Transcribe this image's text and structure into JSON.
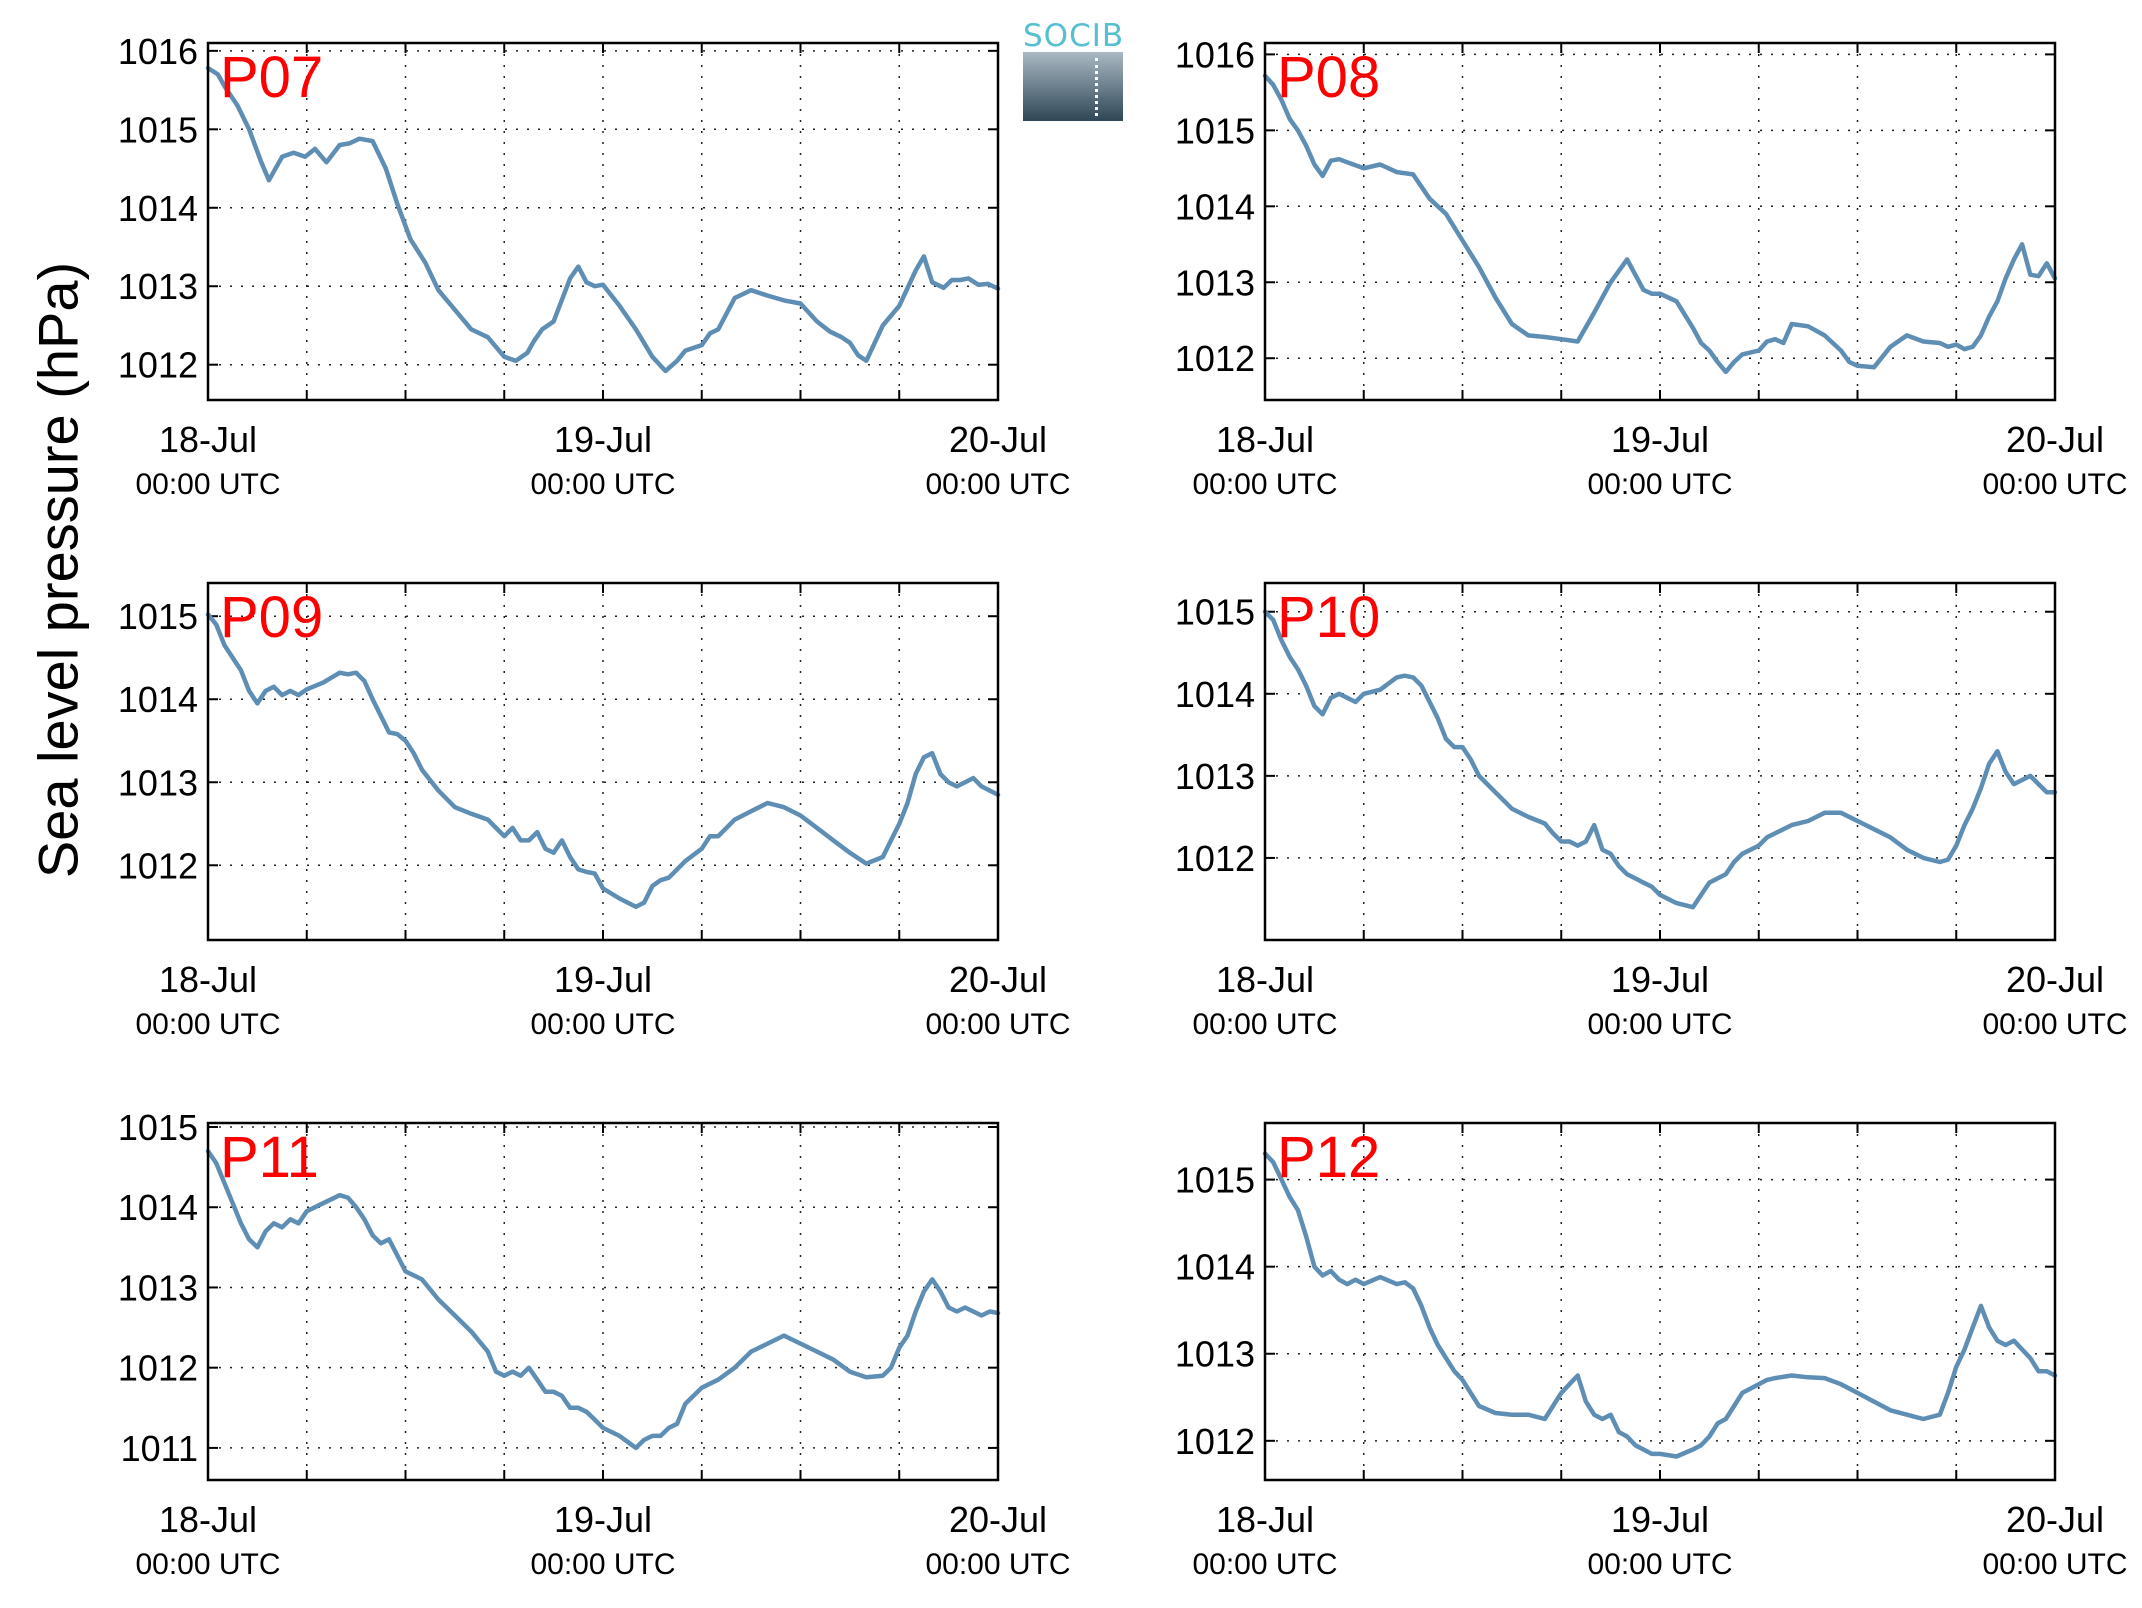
{
  "y_axis_label": "Sea level pressure (hPa)",
  "logo": {
    "text": "SOCIB"
  },
  "chart_data": [
    {
      "type": "line",
      "name": "P07",
      "x_ticks": [
        "18-Jul",
        "19-Jul",
        "20-Jul"
      ],
      "x_tick_sublabel": "00:00 UTC",
      "xlim_hours": [
        0,
        48
      ],
      "ylim": [
        1011.55,
        1016.1
      ],
      "yticks": [
        1012,
        1013,
        1014,
        1015,
        1016
      ],
      "series": [
        {
          "color": "#5f8eb5",
          "x": [
            0,
            0.6,
            1,
            1.8,
            2.5,
            3.2,
            3.7,
            4.5,
            5.2,
            5.9,
            6.5,
            7.2,
            8,
            8.6,
            9.2,
            10,
            10.8,
            11.5,
            12.3,
            13.2,
            14,
            15,
            16,
            17,
            18,
            18.7,
            19.4,
            19.8,
            20.3,
            21,
            22,
            22.5,
            23,
            23.5,
            24,
            25,
            26,
            27,
            27.8,
            28.5,
            29,
            30,
            30.5,
            31,
            32,
            33,
            34,
            35,
            36,
            37,
            37.8,
            38.5,
            39,
            39.5,
            40,
            41,
            42,
            43,
            43.5,
            44,
            44.7,
            45.2,
            45.7,
            46.2,
            46.8,
            47.4,
            48
          ],
          "y": [
            1015.78,
            1015.7,
            1015.55,
            1015.3,
            1015,
            1014.6,
            1014.35,
            1014.65,
            1014.7,
            1014.65,
            1014.75,
            1014.58,
            1014.8,
            1014.82,
            1014.88,
            1014.85,
            1014.5,
            1014.05,
            1013.6,
            1013.3,
            1012.95,
            1012.7,
            1012.45,
            1012.35,
            1012.1,
            1012.05,
            1012.15,
            1012.3,
            1012.45,
            1012.55,
            1013.1,
            1013.25,
            1013.05,
            1013,
            1013.02,
            1012.75,
            1012.45,
            1012.1,
            1011.92,
            1012.05,
            1012.18,
            1012.25,
            1012.4,
            1012.45,
            1012.85,
            1012.95,
            1012.88,
            1012.82,
            1012.78,
            1012.55,
            1012.42,
            1012.35,
            1012.28,
            1012.12,
            1012.05,
            1012.5,
            1012.75,
            1013.2,
            1013.38,
            1013.05,
            1012.98,
            1013.08,
            1013.08,
            1013.1,
            1013.02,
            1013.03,
            1012.97
          ]
        }
      ]
    },
    {
      "type": "line",
      "name": "P08",
      "x_ticks": [
        "18-Jul",
        "19-Jul",
        "20-Jul"
      ],
      "x_tick_sublabel": "00:00 UTC",
      "xlim_hours": [
        0,
        48
      ],
      "ylim": [
        1011.45,
        1016.15
      ],
      "yticks": [
        1012,
        1013,
        1014,
        1015,
        1016
      ],
      "series": [
        {
          "color": "#5f8eb5",
          "x": [
            0,
            0.5,
            1,
            1.5,
            2,
            2.5,
            3,
            3.5,
            4,
            4.5,
            5,
            6,
            7,
            8,
            9,
            10,
            11,
            12,
            13,
            14,
            15,
            16,
            17,
            18,
            19,
            20,
            21,
            22,
            22.5,
            23,
            23.5,
            24,
            25,
            26,
            26.5,
            27,
            27.5,
            28,
            28.5,
            29,
            30,
            30.5,
            31,
            31.5,
            32,
            33,
            34,
            35,
            35.5,
            36,
            37,
            38,
            39,
            40,
            41,
            41.5,
            42,
            42.5,
            43,
            43.5,
            44,
            44.5,
            45,
            45.5,
            46,
            46.5,
            47,
            47.5,
            48
          ],
          "y": [
            1015.72,
            1015.6,
            1015.4,
            1015.15,
            1015,
            1014.8,
            1014.55,
            1014.4,
            1014.6,
            1014.62,
            1014.58,
            1014.5,
            1014.55,
            1014.45,
            1014.42,
            1014.1,
            1013.9,
            1013.55,
            1013.2,
            1012.8,
            1012.45,
            1012.3,
            1012.28,
            1012.25,
            1012.22,
            1012.6,
            1013,
            1013.3,
            1013.1,
            1012.9,
            1012.85,
            1012.85,
            1012.75,
            1012.4,
            1012.2,
            1012.1,
            1011.95,
            1011.82,
            1011.95,
            1012.05,
            1012.1,
            1012.22,
            1012.25,
            1012.2,
            1012.45,
            1012.42,
            1012.3,
            1012.1,
            1011.95,
            1011.9,
            1011.88,
            1012.15,
            1012.3,
            1012.22,
            1012.2,
            1012.15,
            1012.18,
            1012.12,
            1012.15,
            1012.3,
            1012.55,
            1012.75,
            1013.05,
            1013.3,
            1013.5,
            1013.1,
            1013.08,
            1013.25,
            1013.05
          ]
        }
      ]
    },
    {
      "type": "line",
      "name": "P09",
      "x_ticks": [
        "18-Jul",
        "19-Jul",
        "20-Jul"
      ],
      "x_tick_sublabel": "00:00 UTC",
      "xlim_hours": [
        0,
        48
      ],
      "ylim": [
        1011.1,
        1015.4
      ],
      "yticks": [
        1012,
        1013,
        1014,
        1015
      ],
      "series": [
        {
          "color": "#5f8eb5",
          "x": [
            0,
            0.5,
            1,
            1.5,
            2,
            2.5,
            3,
            3.5,
            4,
            4.5,
            5,
            5.5,
            6,
            7,
            8,
            8.5,
            9,
            9.5,
            10,
            10.5,
            11,
            11.5,
            12,
            12.5,
            13,
            14,
            15,
            16,
            17,
            17.5,
            18,
            18.5,
            19,
            19.5,
            20,
            20.5,
            21,
            21.5,
            22,
            22.5,
            23,
            23.5,
            24,
            25,
            26,
            26.5,
            27,
            27.5,
            28,
            28.5,
            29,
            30,
            30.5,
            31,
            32,
            33,
            34,
            35,
            36,
            37,
            38,
            39,
            40,
            41,
            41.5,
            42,
            42.5,
            43,
            43.5,
            44,
            44.5,
            45,
            45.5,
            46,
            46.5,
            47,
            47.5,
            48
          ],
          "y": [
            1015.02,
            1014.9,
            1014.65,
            1014.5,
            1014.35,
            1014.1,
            1013.95,
            1014.1,
            1014.15,
            1014.05,
            1014.1,
            1014.05,
            1014.12,
            1014.2,
            1014.32,
            1014.3,
            1014.32,
            1014.22,
            1014,
            1013.8,
            1013.6,
            1013.58,
            1013.5,
            1013.35,
            1013.15,
            1012.9,
            1012.7,
            1012.62,
            1012.55,
            1012.45,
            1012.35,
            1012.45,
            1012.3,
            1012.3,
            1012.4,
            1012.2,
            1012.15,
            1012.3,
            1012.1,
            1011.95,
            1011.92,
            1011.9,
            1011.72,
            1011.6,
            1011.5,
            1011.55,
            1011.75,
            1011.82,
            1011.85,
            1011.95,
            1012.05,
            1012.2,
            1012.35,
            1012.35,
            1012.55,
            1012.65,
            1012.75,
            1012.7,
            1012.6,
            1012.45,
            1012.3,
            1012.15,
            1012.02,
            1012.1,
            1012.3,
            1012.5,
            1012.75,
            1013.1,
            1013.3,
            1013.35,
            1013.1,
            1013,
            1012.95,
            1013,
            1013.05,
            1012.95,
            1012.9,
            1012.85
          ]
        }
      ]
    },
    {
      "type": "line",
      "name": "P10",
      "x_ticks": [
        "18-Jul",
        "19-Jul",
        "20-Jul"
      ],
      "x_tick_sublabel": "00:00 UTC",
      "xlim_hours": [
        0,
        48
      ],
      "ylim": [
        1011.0,
        1015.35
      ],
      "yticks": [
        1012,
        1013,
        1014,
        1015
      ],
      "series": [
        {
          "color": "#5f8eb5",
          "x": [
            0,
            0.5,
            1,
            1.5,
            2,
            2.5,
            3,
            3.5,
            4,
            4.5,
            5,
            5.5,
            6,
            7,
            8,
            8.5,
            9,
            9.5,
            10,
            10.5,
            11,
            11.5,
            12,
            12.5,
            13,
            14,
            15,
            16,
            17,
            17.5,
            18,
            18.5,
            19,
            19.5,
            20,
            20.5,
            21,
            21.5,
            22,
            22.5,
            23,
            23.5,
            24,
            25,
            26,
            26.5,
            27,
            27.5,
            28,
            28.5,
            29,
            30,
            30.5,
            31,
            32,
            33,
            34,
            35,
            36,
            37,
            38,
            39,
            40,
            41,
            41.5,
            42,
            42.5,
            43,
            43.5,
            44,
            44.5,
            45,
            45.5,
            46,
            46.5,
            47,
            47.5,
            48
          ],
          "y": [
            1015,
            1014.9,
            1014.65,
            1014.45,
            1014.3,
            1014.1,
            1013.85,
            1013.75,
            1013.95,
            1014,
            1013.95,
            1013.9,
            1014,
            1014.05,
            1014.2,
            1014.22,
            1014.2,
            1014.1,
            1013.9,
            1013.7,
            1013.45,
            1013.35,
            1013.35,
            1013.2,
            1013,
            1012.8,
            1012.6,
            1012.5,
            1012.42,
            1012.3,
            1012.2,
            1012.2,
            1012.15,
            1012.2,
            1012.4,
            1012.1,
            1012.05,
            1011.9,
            1011.8,
            1011.75,
            1011.7,
            1011.65,
            1011.55,
            1011.45,
            1011.4,
            1011.55,
            1011.7,
            1011.75,
            1011.8,
            1011.95,
            1012.05,
            1012.15,
            1012.25,
            1012.3,
            1012.4,
            1012.45,
            1012.55,
            1012.55,
            1012.45,
            1012.35,
            1012.25,
            1012.1,
            1012,
            1011.95,
            1011.98,
            1012.15,
            1012.4,
            1012.6,
            1012.85,
            1013.15,
            1013.3,
            1013.05,
            1012.9,
            1012.95,
            1013,
            1012.9,
            1012.8,
            1012.8
          ]
        }
      ]
    },
    {
      "type": "line",
      "name": "P11",
      "x_ticks": [
        "18-Jul",
        "19-Jul",
        "20-Jul"
      ],
      "x_tick_sublabel": "00:00 UTC",
      "xlim_hours": [
        0,
        48
      ],
      "ylim": [
        1010.6,
        1015.05
      ],
      "yticks": [
        1011,
        1012,
        1013,
        1014,
        1015
      ],
      "series": [
        {
          "color": "#5f8eb5",
          "x": [
            0,
            0.5,
            1,
            1.5,
            2,
            2.5,
            3,
            3.5,
            4,
            4.5,
            5,
            5.5,
            6,
            7,
            8,
            8.5,
            9,
            9.5,
            10,
            10.5,
            11,
            11.5,
            12,
            12.5,
            13,
            14,
            15,
            16,
            17,
            17.5,
            18,
            18.5,
            19,
            19.5,
            20,
            20.5,
            21,
            21.5,
            22,
            22.5,
            23,
            23.5,
            24,
            25,
            26,
            26.5,
            27,
            27.5,
            28,
            28.5,
            29,
            30,
            30.5,
            31,
            32,
            33,
            34,
            35,
            36,
            37,
            38,
            39,
            40,
            41,
            41.5,
            42,
            42.5,
            43,
            43.5,
            44,
            44.5,
            45,
            45.5,
            46,
            46.5,
            47,
            47.5,
            48
          ],
          "y": [
            1014.7,
            1014.55,
            1014.3,
            1014.05,
            1013.8,
            1013.6,
            1013.5,
            1013.7,
            1013.8,
            1013.75,
            1013.85,
            1013.8,
            1013.95,
            1014.05,
            1014.15,
            1014.12,
            1014,
            1013.85,
            1013.65,
            1013.55,
            1013.6,
            1013.4,
            1013.2,
            1013.15,
            1013.1,
            1012.85,
            1012.65,
            1012.45,
            1012.2,
            1011.95,
            1011.9,
            1011.95,
            1011.9,
            1012,
            1011.85,
            1011.7,
            1011.7,
            1011.65,
            1011.5,
            1011.5,
            1011.45,
            1011.35,
            1011.25,
            1011.15,
            1011,
            1011.1,
            1011.15,
            1011.15,
            1011.25,
            1011.3,
            1011.55,
            1011.75,
            1011.8,
            1011.85,
            1012,
            1012.2,
            1012.3,
            1012.4,
            1012.3,
            1012.2,
            1012.1,
            1011.95,
            1011.88,
            1011.9,
            1012,
            1012.25,
            1012.4,
            1012.7,
            1012.95,
            1013.1,
            1012.95,
            1012.75,
            1012.7,
            1012.75,
            1012.7,
            1012.65,
            1012.7,
            1012.68
          ]
        }
      ]
    },
    {
      "type": "line",
      "name": "P12",
      "x_ticks": [
        "18-Jul",
        "19-Jul",
        "20-Jul"
      ],
      "x_tick_sublabel": "00:00 UTC",
      "xlim_hours": [
        0,
        48
      ],
      "ylim": [
        1011.55,
        1015.65
      ],
      "yticks": [
        1012,
        1013,
        1014,
        1015
      ],
      "series": [
        {
          "color": "#5f8eb5",
          "x": [
            0,
            0.5,
            1,
            1.5,
            2,
            2.5,
            3,
            3.5,
            4,
            4.5,
            5,
            5.5,
            6,
            7,
            8,
            8.5,
            9,
            9.5,
            10,
            10.5,
            11,
            11.5,
            12,
            12.5,
            13,
            14,
            15,
            16,
            17,
            17.5,
            18,
            18.5,
            19,
            19.5,
            20,
            20.5,
            21,
            21.5,
            22,
            22.5,
            23,
            23.5,
            24,
            25,
            26,
            26.5,
            27,
            27.5,
            28,
            28.5,
            29,
            30,
            30.5,
            31,
            32,
            33,
            34,
            35,
            36,
            37,
            38,
            39,
            40,
            41,
            41.5,
            42,
            42.5,
            43,
            43.5,
            44,
            44.5,
            45,
            45.5,
            46,
            46.5,
            47,
            47.5,
            48
          ],
          "y": [
            1015.3,
            1015.2,
            1015,
            1014.8,
            1014.65,
            1014.35,
            1014,
            1013.9,
            1013.95,
            1013.85,
            1013.8,
            1013.85,
            1013.8,
            1013.88,
            1013.8,
            1013.82,
            1013.75,
            1013.55,
            1013.3,
            1013.1,
            1012.95,
            1012.8,
            1012.7,
            1012.55,
            1012.4,
            1012.32,
            1012.3,
            1012.3,
            1012.25,
            1012.4,
            1012.55,
            1012.65,
            1012.75,
            1012.45,
            1012.3,
            1012.25,
            1012.3,
            1012.1,
            1012.05,
            1011.95,
            1011.9,
            1011.85,
            1011.85,
            1011.82,
            1011.9,
            1011.95,
            1012.05,
            1012.2,
            1012.25,
            1012.4,
            1012.55,
            1012.65,
            1012.7,
            1012.72,
            1012.75,
            1012.73,
            1012.72,
            1012.65,
            1012.55,
            1012.45,
            1012.35,
            1012.3,
            1012.25,
            1012.3,
            1012.55,
            1012.85,
            1013.05,
            1013.3,
            1013.55,
            1013.3,
            1013.15,
            1013.1,
            1013.15,
            1013.05,
            1012.95,
            1012.8,
            1012.8,
            1012.75
          ]
        }
      ]
    }
  ]
}
